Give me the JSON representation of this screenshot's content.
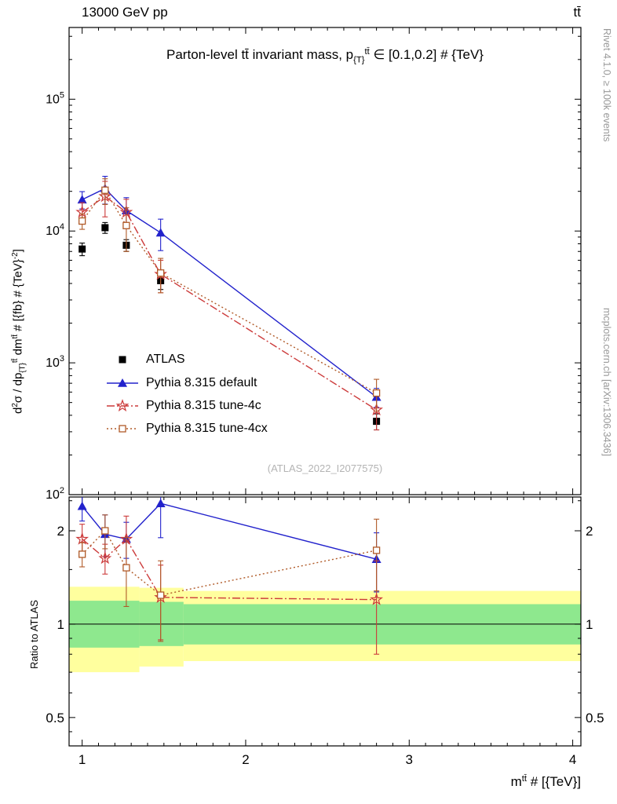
{
  "header": {
    "left": "13000 GeV pp",
    "right": "tt̄"
  },
  "side_notes": {
    "top_right": "Rivet 4.1.0, ≥ 100k events",
    "bottom_right": "mcplots.cern.ch [arXiv:1306.3436]"
  },
  "watermark": "(ATLAS_2022_I2077575)",
  "ratio_ylabel": "Ratio to ATLAS",
  "title_runs": [
    {
      "t": "Parton-level tt̄ invariant mass, p"
    },
    {
      "t": "{T}",
      "s": "sub"
    },
    {
      "t": "tt̄",
      "s": "sup"
    },
    {
      "t": " ∈ [0.1,0.2] # {TeV}"
    }
  ],
  "ylabel_runs": [
    {
      "t": "d"
    },
    {
      "t": "2",
      "s": "sup"
    },
    {
      "t": "σ / dp"
    },
    {
      "t": "{T}",
      "s": "sub"
    },
    {
      "t": "tt̄",
      "s": "sup"
    },
    {
      "t": " dm"
    },
    {
      "t": "tt̄",
      "s": "sup"
    },
    {
      "t": " # [{fb} # {TeV}"
    },
    {
      "t": "-2",
      "s": "sup"
    },
    {
      "t": "]"
    }
  ],
  "xlabel_runs": [
    {
      "t": "m"
    },
    {
      "t": "tt̄",
      "s": "sup"
    },
    {
      "t": " # [{TeV}]"
    }
  ],
  "chart_data": {
    "type": "line",
    "title": "Parton-level ttbar invariant mass, pT^ttbar in [0.1,0.2] TeV",
    "xlabel": "m^tt # [{TeV}]",
    "ylabel": "d2sigma / dpT^tt dm^tt # [{fb} # {TeV}^-2]",
    "x": [
      1.0,
      1.14,
      1.27,
      1.48,
      2.8
    ],
    "x_range": [
      0.92,
      4.05
    ],
    "x_ticks": [
      1,
      2,
      3,
      4
    ],
    "main_y_range": [
      100,
      350000
    ],
    "main_y_ticks_exponents": [
      2,
      3,
      4,
      5
    ],
    "ratio_y_range": [
      0.405,
      2.57
    ],
    "ratio_y_ticks": [
      0.5,
      1,
      2
    ],
    "ratio_y_minor_ticks": [
      0.45,
      0.6,
      0.7,
      0.8,
      0.9,
      1.5,
      2.5
    ],
    "reference_line": 1,
    "series": [
      {
        "name": "ATLAS",
        "marker": "square-filled",
        "color": "#000000",
        "line": "none",
        "values": [
          7300,
          10600,
          7800,
          4200,
          360
        ],
        "errors": [
          800,
          1000,
          800,
          600,
          50
        ],
        "ratio": null,
        "ratio_errors": null
      },
      {
        "name": "Pythia 8.315 default",
        "marker": "triangle-filled",
        "color": "#2222cc",
        "line": "solid",
        "values": [
          17300,
          21000,
          14300,
          9700,
          550
        ],
        "errors": [
          2600,
          5000,
          3600,
          2600,
          90
        ],
        "ratio": [
          2.4,
          1.95,
          1.88,
          2.45,
          1.62
        ],
        "ratio_errors": [
          0.25,
          0.3,
          0.25,
          0.55,
          0.35
        ]
      },
      {
        "name": "Pythia 8.315 tune-4c",
        "marker": "star-open",
        "color": "#cc3a3a",
        "line": "dashdot",
        "values": [
          13900,
          18300,
          13900,
          4700,
          440
        ],
        "errors": [
          2500,
          5500,
          3500,
          1300,
          130
        ],
        "ratio": [
          1.88,
          1.63,
          1.88,
          1.22,
          1.2
        ],
        "ratio_errors": [
          0.22,
          0.18,
          0.35,
          0.33,
          0.4
        ]
      },
      {
        "name": "Pythia 8.315 tune-4cx",
        "marker": "square-open",
        "color": "#b05a28",
        "line": "dotted",
        "values": [
          11900,
          20400,
          11000,
          4800,
          590
        ],
        "errors": [
          1600,
          4500,
          4000,
          1400,
          160
        ],
        "ratio": [
          1.68,
          2.0,
          1.52,
          1.24,
          1.73
        ],
        "ratio_errors": [
          0.15,
          0.25,
          0.38,
          0.36,
          0.45
        ]
      }
    ],
    "bands": {
      "yellow": {
        "color": "#ffff9e",
        "segments": [
          {
            "x0": 0.92,
            "x1": 1.35,
            "lo": 0.7,
            "hi": 1.32
          },
          {
            "x0": 1.35,
            "x1": 1.62,
            "lo": 0.73,
            "hi": 1.31
          },
          {
            "x0": 1.62,
            "x1": 4.05,
            "lo": 0.76,
            "hi": 1.28
          }
        ]
      },
      "green": {
        "color": "#8ee88e",
        "segments": [
          {
            "x0": 0.92,
            "x1": 1.35,
            "lo": 0.84,
            "hi": 1.19
          },
          {
            "x0": 1.35,
            "x1": 1.62,
            "lo": 0.85,
            "hi": 1.18
          },
          {
            "x0": 1.62,
            "x1": 4.05,
            "lo": 0.86,
            "hi": 1.16
          }
        ]
      }
    },
    "legend_position": "inside-left-middle",
    "grid": false
  },
  "legend": {
    "items": [
      {
        "label": "ATLAS"
      },
      {
        "label": "Pythia 8.315 default"
      },
      {
        "label": "Pythia 8.315 tune-4c"
      },
      {
        "label": "Pythia 8.315 tune-4cx"
      }
    ]
  }
}
